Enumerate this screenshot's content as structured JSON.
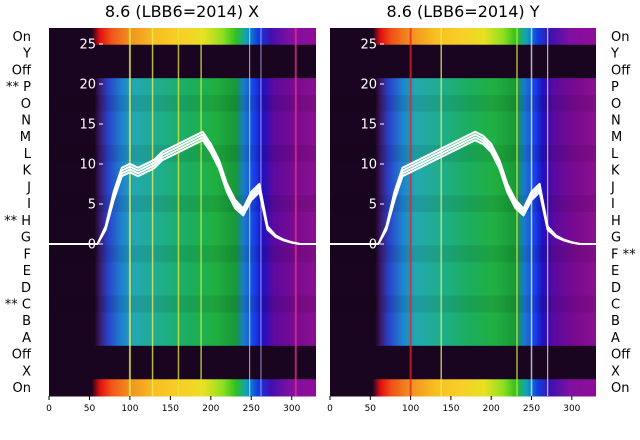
{
  "figure": {
    "panels": [
      {
        "id": "left",
        "title": "8.6 (LBB6=2014) X",
        "row_labels": [
          "On",
          "Y",
          "Off",
          "** P",
          "O",
          "N",
          "M",
          "L",
          "K",
          "J",
          "I",
          "** H",
          "G",
          "F",
          "E",
          "D",
          "** C",
          "B",
          "A",
          "Off",
          "X",
          "On"
        ]
      },
      {
        "id": "right",
        "title": "8.6 (LBB6=2014) Y",
        "row_labels": [
          "On",
          "Y",
          "Off",
          "P",
          "O",
          "N",
          "M",
          "L",
          "K",
          "J",
          "I",
          "H",
          "G",
          "F **",
          "E",
          "D",
          "C",
          "B",
          "A",
          "Off",
          "X",
          "On"
        ]
      }
    ],
    "colormap_note": "",
    "colors": {
      "background_dark": "#1a0520",
      "trace": "#ffffff"
    }
  },
  "chart_data": [
    {
      "type": "heatmap",
      "title": "8.6 (LBB6=2014) X",
      "x_ticks": [
        0,
        50,
        100,
        150,
        200,
        250,
        300
      ],
      "xlim": [
        0,
        330
      ],
      "y_ticks": [
        0,
        5,
        10,
        15,
        20,
        25
      ],
      "ylim": [
        -19,
        27
      ],
      "rows": [
        "On",
        "Y",
        "Off",
        "** P",
        "O",
        "N",
        "M",
        "L",
        "K",
        "J",
        "I",
        "** H",
        "G",
        "F",
        "E",
        "D",
        "** C",
        "B",
        "A",
        "Off",
        "X",
        "On"
      ],
      "active_rows": {
        "top_bright": "On",
        "bottom_bright": "On"
      },
      "trace": {
        "x": [
          0,
          60,
          70,
          80,
          90,
          100,
          110,
          120,
          130,
          140,
          150,
          160,
          170,
          180,
          190,
          200,
          210,
          220,
          230,
          240,
          250,
          260,
          270,
          280,
          290,
          300,
          310,
          330
        ],
        "y": [
          0,
          0,
          2,
          6,
          9,
          9.5,
          9,
          9.5,
          10,
          11,
          11.5,
          12,
          12.5,
          13,
          13.5,
          12,
          10,
          7,
          5,
          4,
          6,
          7,
          2,
          1,
          0.5,
          0.2,
          0,
          0
        ]
      }
    },
    {
      "type": "heatmap",
      "title": "8.6 (LBB6=2014) Y",
      "x_ticks": [
        0,
        50,
        100,
        150,
        200,
        250,
        300
      ],
      "xlim": [
        0,
        330
      ],
      "y_ticks": [
        0,
        5,
        10,
        15,
        20,
        25
      ],
      "ylim": [
        -19,
        27
      ],
      "rows": [
        "On",
        "Y",
        "Off",
        "P",
        "O",
        "N",
        "M",
        "L",
        "K",
        "J",
        "I",
        "H",
        "G",
        "F **",
        "E",
        "D",
        "C",
        "B",
        "A",
        "Off",
        "X",
        "On"
      ],
      "trace": {
        "x": [
          0,
          60,
          70,
          80,
          90,
          100,
          110,
          120,
          130,
          140,
          150,
          160,
          170,
          180,
          190,
          200,
          210,
          220,
          230,
          240,
          250,
          260,
          270,
          280,
          290,
          300,
          310,
          330
        ],
        "y": [
          0,
          0,
          2,
          6,
          9,
          9.5,
          10,
          10.5,
          11,
          11.5,
          12,
          12.5,
          13,
          13.5,
          13,
          12,
          10,
          7,
          5,
          4,
          6,
          7,
          2,
          1,
          0.5,
          0.2,
          0,
          0
        ]
      }
    }
  ]
}
